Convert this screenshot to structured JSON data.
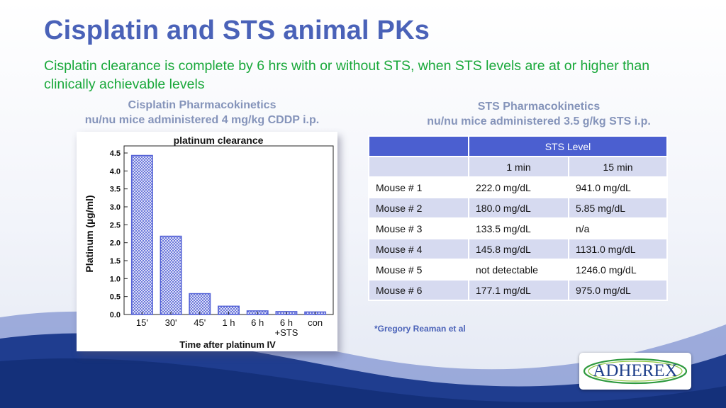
{
  "slide": {
    "title": "Cisplatin and STS animal PKs",
    "subtitle": "Cisplatin clearance is complete by 6 hrs with or without STS, when STS levels are at or higher than clinically achievable levels",
    "left_caption": {
      "line1": "Cisplatin Pharmacokinetics",
      "line2": "nu/nu mice administered 4 mg/kg CDDP i.p."
    },
    "right_caption": {
      "line1": "STS Pharmacokinetics",
      "line2": "nu/nu mice administered 3.5 g/kg STS i.p."
    },
    "credit": "*Gregory Reaman et al",
    "logo_text": "ADHEREX"
  },
  "colors": {
    "title": "#4a62b8",
    "subtitle": "#19a83a",
    "bar": "#5563d6",
    "table_header": "#4b5fd0",
    "table_band": "#d6daf0"
  },
  "table": {
    "group_header": "STS Level",
    "columns": [
      "1 min",
      "15 min"
    ],
    "rows": [
      {
        "label": "Mouse # 1",
        "min1": "222.0 mg/dL",
        "min15": "941.0 mg/dL"
      },
      {
        "label": "Mouse # 2",
        "min1": "180.0 mg/dL",
        "min15": "5.85 mg/dL"
      },
      {
        "label": "Mouse # 3",
        "min1": "133.5 mg/dL",
        "min15": "n/a"
      },
      {
        "label": "Mouse # 4",
        "min1": "145.8 mg/dL",
        "min15": "1131.0 mg/dL"
      },
      {
        "label": "Mouse # 5",
        "min1": "not detectable",
        "min15": "1246.0 mg/dL"
      },
      {
        "label": "Mouse # 6",
        "min1": "177.1 mg/dL",
        "min15": "975.0 mg/dL"
      }
    ]
  },
  "chart_data": {
    "type": "bar",
    "title": "platinum clearance",
    "xlabel": "Time after platinum IV",
    "ylabel": "Platinum (µg/ml)",
    "categories": [
      "15'",
      "30'",
      "45'",
      "1 h",
      "6 h",
      "6 h\n+STS",
      "con"
    ],
    "values": [
      4.43,
      2.18,
      0.58,
      0.23,
      0.1,
      0.08,
      0.07
    ],
    "ylim": [
      0,
      4.5
    ],
    "yticks": [
      "0.0",
      "0.5",
      "1.0",
      "1.5",
      "2.0",
      "2.5",
      "3.0",
      "3.5",
      "4.0",
      "4.5"
    ],
    "grid": false,
    "legend": "none"
  }
}
